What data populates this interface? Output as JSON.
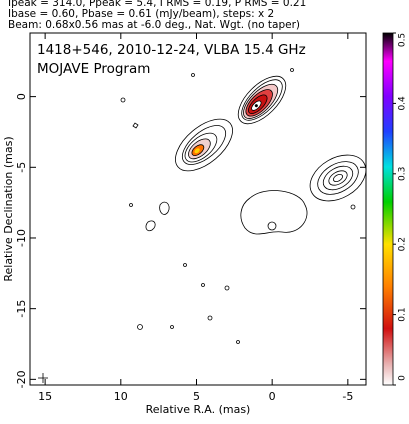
{
  "chart_data": {
    "type": "contour",
    "header": [
      "Ipeak = 314.0, Ppeak = 5.4, I RMS = 0.19, P RMS = 0.21",
      "Ibase = 0.60, Pbase = 0.61 (mJy/beam), steps: x 2",
      "Beam: 0.68x0.56 mas at -6.0 deg., Nat. Wgt. (no taper)"
    ],
    "title": "1418+546, 2010-12-24, VLBA 15.4 GHz",
    "subtitle": "MOJAVE Program",
    "xlabel": "Relative R.A. (mas)",
    "ylabel": "Relative Declination (mas)",
    "xlim": [
      16,
      -6.2
    ],
    "ylim": [
      -20.4,
      4.5
    ],
    "xticks": [
      15,
      10,
      5,
      0,
      -5
    ],
    "yticks": [
      0,
      -5,
      -10,
      -15,
      -20
    ],
    "colorbar_lim": [
      0,
      0.5
    ],
    "colorbar_ticks": [
      0,
      0.1,
      0.2,
      0.3,
      0.4,
      0.5
    ]
  }
}
